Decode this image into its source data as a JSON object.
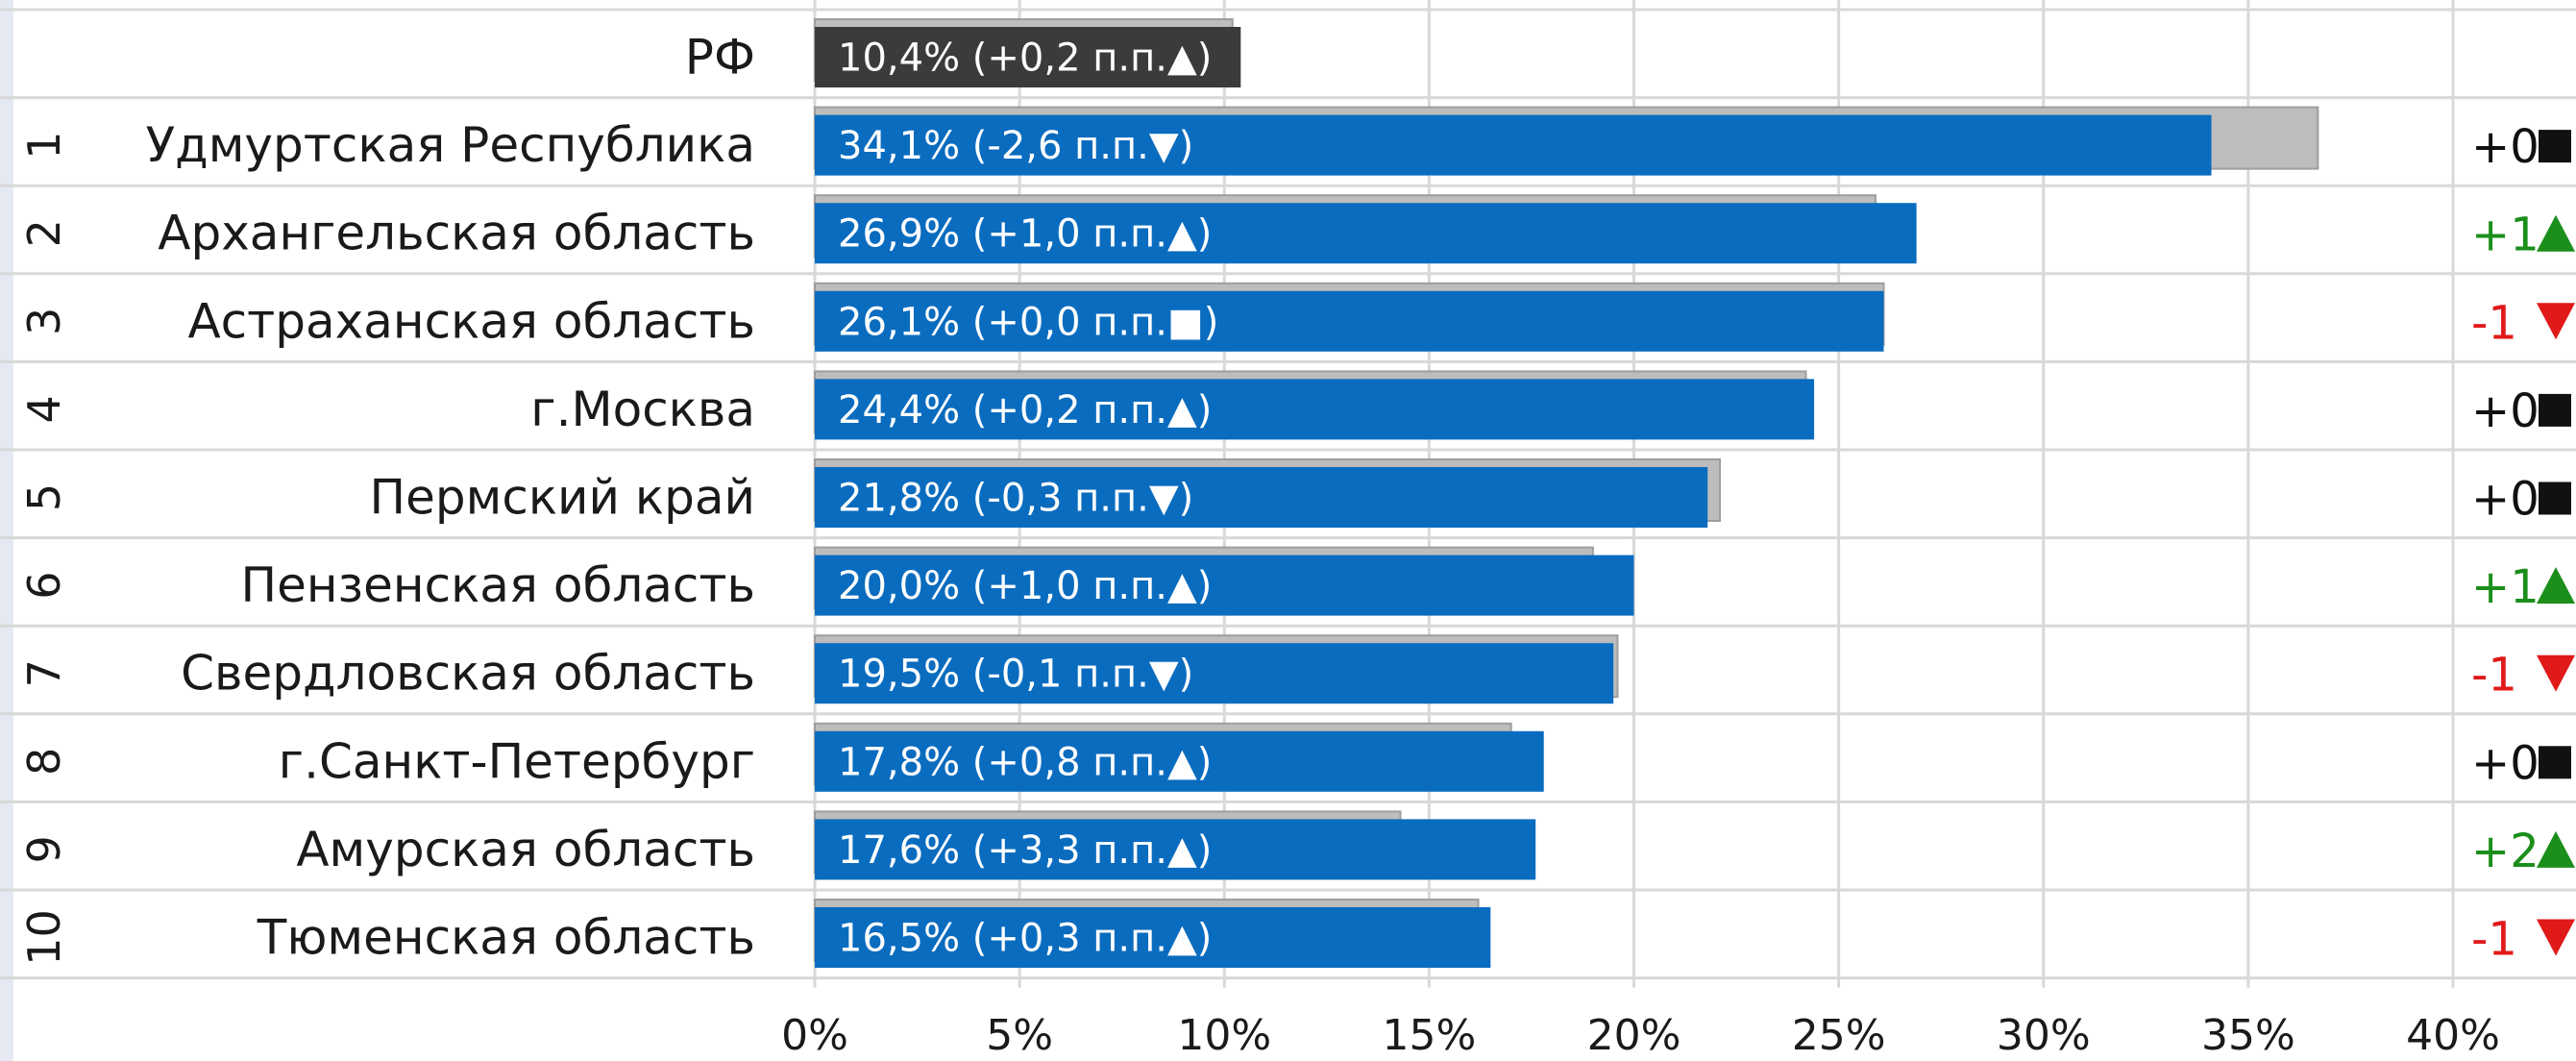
{
  "colors": {
    "current_bar": "#0A6CBF",
    "national_bar": "#3B3B3B",
    "previous_bar": "#BDBDBD",
    "up": "#1B8E1B",
    "down": "#E01919",
    "same": "#111111",
    "grid": "#D8D8D8",
    "left_strip": "#E4E9F2"
  },
  "chart_data": {
    "type": "bar",
    "orientation": "horizontal",
    "xlim": [
      0,
      40
    ],
    "xticks": [
      "0%",
      "5%",
      "10%",
      "15%",
      "20%",
      "25%",
      "30%",
      "35%",
      "40%"
    ],
    "grid": true,
    "national": {
      "region": "РФ",
      "value": 10.4,
      "previous": 10.2,
      "label": "10,4% (+0,2 п.п.▲)"
    },
    "rows": [
      {
        "rank": "1",
        "region": "Удмуртская Республика",
        "value": 34.1,
        "previous": 36.7,
        "label": "34,1% (-2,6 п.п.▼)",
        "rank_change": "+0",
        "rank_change_dir": "same"
      },
      {
        "rank": "2",
        "region": "Архангельская область",
        "value": 26.9,
        "previous": 25.9,
        "label": "26,9% (+1,0 п.п.▲)",
        "rank_change": "+1",
        "rank_change_dir": "up"
      },
      {
        "rank": "3",
        "region": "Астраханская область",
        "value": 26.1,
        "previous": 26.1,
        "label": "26,1% (+0,0 п.п.■)",
        "rank_change": "-1",
        "rank_change_dir": "down"
      },
      {
        "rank": "4",
        "region": "г.Москва",
        "value": 24.4,
        "previous": 24.2,
        "label": "24,4% (+0,2 п.п.▲)",
        "rank_change": "+0",
        "rank_change_dir": "same"
      },
      {
        "rank": "5",
        "region": "Пермский край",
        "value": 21.8,
        "previous": 22.1,
        "label": "21,8% (-0,3 п.п.▼)",
        "rank_change": "+0",
        "rank_change_dir": "same"
      },
      {
        "rank": "6",
        "region": "Пензенская область",
        "value": 20.0,
        "previous": 19.0,
        "label": "20,0% (+1,0 п.п.▲)",
        "rank_change": "+1",
        "rank_change_dir": "up"
      },
      {
        "rank": "7",
        "region": "Свердловская область",
        "value": 19.5,
        "previous": 19.6,
        "label": "19,5% (-0,1 п.п.▼)",
        "rank_change": "-1",
        "rank_change_dir": "down"
      },
      {
        "rank": "8",
        "region": "г.Санкт-Петербург",
        "value": 17.8,
        "previous": 17.0,
        "label": "17,8% (+0,8 п.п.▲)",
        "rank_change": "+0",
        "rank_change_dir": "same"
      },
      {
        "rank": "9",
        "region": "Амурская область",
        "value": 17.6,
        "previous": 14.3,
        "label": "17,6% (+3,3 п.п.▲)",
        "rank_change": "+2",
        "rank_change_dir": "up"
      },
      {
        "rank": "10",
        "region": "Тюменская область",
        "value": 16.5,
        "previous": 16.2,
        "label": "16,5% (+0,3 п.п.▲)",
        "rank_change": "-1",
        "rank_change_dir": "down"
      }
    ]
  }
}
